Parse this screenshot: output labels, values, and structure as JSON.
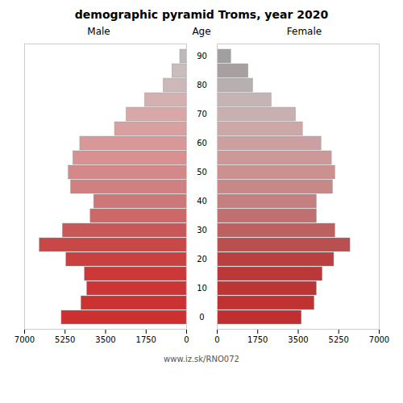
{
  "chart_data": {
    "type": "bar",
    "orientation": "horizontal",
    "title": "demographic pyramid Troms, year 2020",
    "ylabel": "Age",
    "annotations": [
      "www.iz.sk/RNO072"
    ],
    "categories": [
      0,
      null,
      10,
      null,
      20,
      null,
      30,
      null,
      40,
      null,
      50,
      null,
      60,
      null,
      70,
      null,
      80,
      null,
      90
    ],
    "series": [
      {
        "name": "Male",
        "colors": [
          "#cd3030",
          "#cc3232",
          "#cc3535",
          "#cc3838",
          "#c84040",
          "#c84848",
          "#c85858",
          "#cc6868",
          "#cc7878",
          "#d08080",
          "#d48888",
          "#d89090",
          "#d89898",
          "#d8a0a0",
          "#d8a8a8",
          "#d4b0b0",
          "#ccb8b8",
          "#c8bcbc",
          "#c0b8b8"
        ],
        "values": [
          5400,
          4550,
          4300,
          4400,
          5200,
          6350,
          5350,
          4150,
          4000,
          5000,
          5100,
          4900,
          4600,
          3100,
          2600,
          1800,
          1000,
          620,
          280
        ]
      },
      {
        "name": "Female",
        "colors": [
          "#c03030",
          "#c03232",
          "#bc3535",
          "#bc3838",
          "#b84040",
          "#b85050",
          "#bc6060",
          "#c07070",
          "#c48080",
          "#c88888",
          "#cc9090",
          "#cc9898",
          "#cca0a0",
          "#cca8a8",
          "#c8b0b0",
          "#c4b4b4",
          "#b8b0b0",
          "#a8a0a0",
          "#a0a0a0"
        ],
        "values": [
          3650,
          4200,
          4300,
          4550,
          5050,
          5750,
          5100,
          4300,
          4300,
          5000,
          5100,
          4950,
          4500,
          3700,
          3400,
          2350,
          1550,
          1350,
          600
        ]
      }
    ],
    "xlim": [
      0,
      7000
    ],
    "xticks": [
      0,
      1750,
      3500,
      5250,
      7000
    ]
  }
}
